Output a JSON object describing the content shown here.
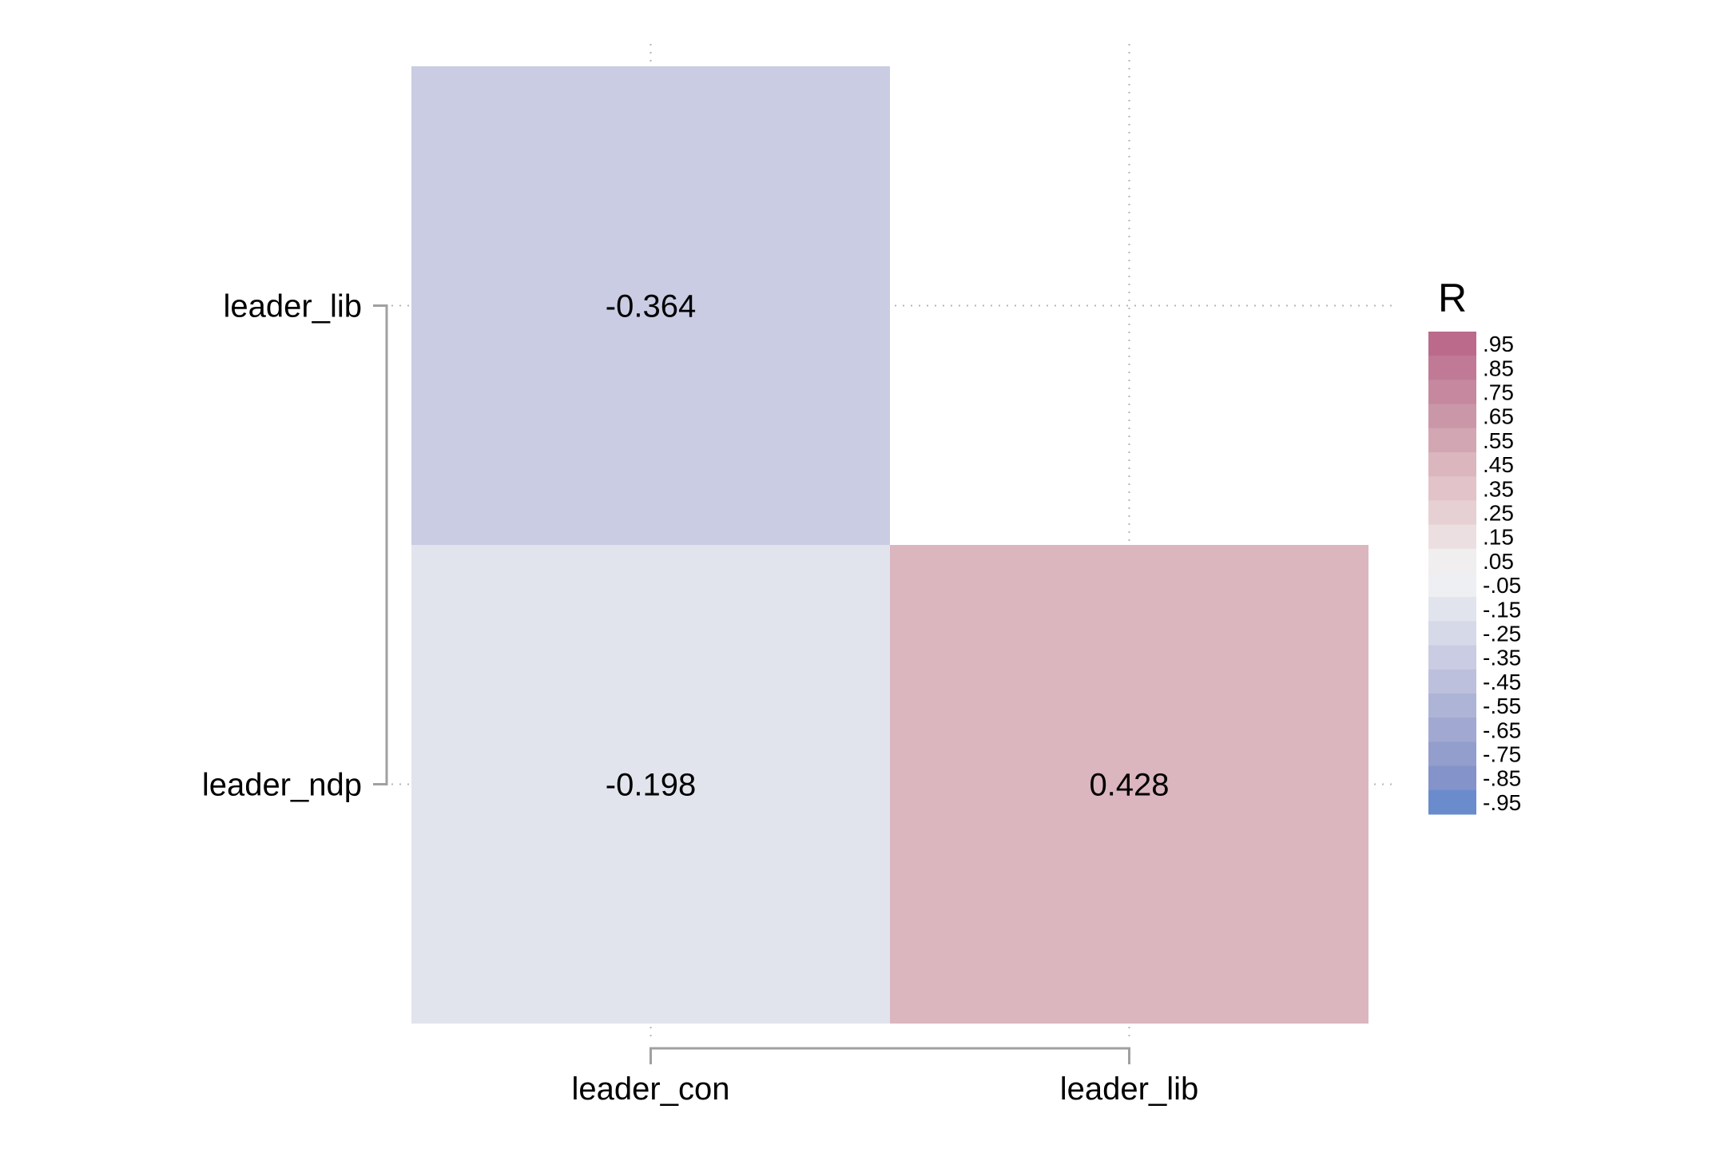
{
  "chart_data": {
    "type": "heatmap",
    "title": "",
    "xlabel": "",
    "ylabel": "",
    "x_categories": [
      "leader_con",
      "leader_lib"
    ],
    "y_categories": [
      "leader_lib",
      "leader_ndp"
    ],
    "cells": [
      {
        "x": "leader_con",
        "y": "leader_lib",
        "value": -0.364,
        "label": "-0.364"
      },
      {
        "x": "leader_con",
        "y": "leader_ndp",
        "value": -0.198,
        "label": "-0.198"
      },
      {
        "x": "leader_lib",
        "y": "leader_ndp",
        "value": 0.428,
        "label": "0.428"
      }
    ],
    "grid": "dotted",
    "legend": {
      "title": "R",
      "position": "right",
      "bins": [
        {
          "label": ".95",
          "color": "#bb6a8c"
        },
        {
          "label": ".85",
          "color": "#c07a96"
        },
        {
          "label": ".75",
          "color": "#c5889f"
        },
        {
          "label": ".65",
          "color": "#ca97a8"
        },
        {
          "label": ".55",
          "color": "#d3a6b3"
        },
        {
          "label": ".45",
          "color": "#dbb6be"
        },
        {
          "label": ".35",
          "color": "#e1c3c9"
        },
        {
          "label": ".25",
          "color": "#e7d0d4"
        },
        {
          "label": ".15",
          "color": "#ecdfe1"
        },
        {
          "label": ".05",
          "color": "#f1eef0"
        },
        {
          "label": "-.05",
          "color": "#eeeff3"
        },
        {
          "label": "-.15",
          "color": "#e2e4ed"
        },
        {
          "label": "-.25",
          "color": "#d6d9e8"
        },
        {
          "label": "-.35",
          "color": "#c9cce2"
        },
        {
          "label": "-.45",
          "color": "#bcc0dc"
        },
        {
          "label": "-.55",
          "color": "#aeb4d6"
        },
        {
          "label": "-.65",
          "color": "#a1a8d1"
        },
        {
          "label": "-.75",
          "color": "#949ecc"
        },
        {
          "label": "-.85",
          "color": "#8493c9"
        },
        {
          "label": "-.95",
          "color": "#6a8ccd"
        }
      ]
    }
  }
}
